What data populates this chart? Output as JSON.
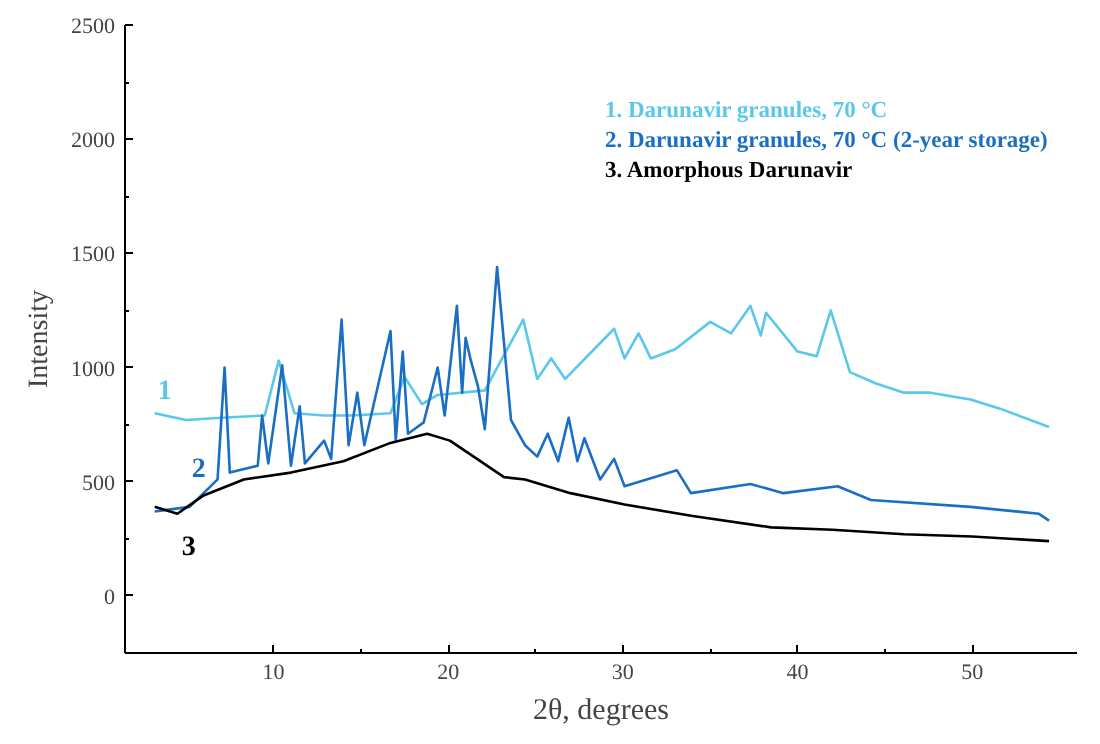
{
  "chart_data": {
    "type": "line",
    "xlabel": "2θ, degrees",
    "ylabel": "Intensity",
    "xlim": [
      1.5,
      56
    ],
    "ylim": [
      -250,
      2500
    ],
    "xticks": [
      10,
      20,
      30,
      40,
      50
    ],
    "yticks": [
      0,
      500,
      1000,
      1500,
      2000,
      2500
    ],
    "grid": false,
    "legend": "top right",
    "marker": "none",
    "line_style": "solid",
    "series": [
      {
        "name": "1. Darunavir granules, 70 °C",
        "color": "#5ac8eb",
        "x": [
          3.2,
          5,
          7,
          9.5,
          10.3,
          11.2,
          12.9,
          14.5,
          16.7,
          17.5,
          18.5,
          19.4,
          22.1,
          24.3,
          25.1,
          25.9,
          26.7,
          29.5,
          30.1,
          30.9,
          31.6,
          33,
          35.0,
          36.2,
          37.3,
          37.9,
          38.2,
          40.0,
          41.1,
          41.9,
          43.0,
          44.5,
          46.1,
          47.6,
          49.9,
          51.6,
          54.4
        ],
        "values": [
          800,
          770,
          780,
          790,
          1030,
          800,
          790,
          790,
          800,
          960,
          840,
          880,
          900,
          1210,
          950,
          1040,
          950,
          1170,
          1040,
          1150,
          1040,
          1080,
          1200,
          1150,
          1270,
          1140,
          1240,
          1070,
          1050,
          1250,
          980,
          930,
          890,
          890,
          860,
          820,
          740
        ]
      },
      {
        "name": "2. Darunavir granules, 70 °C (2-year storage)",
        "color": "#1a6fc4",
        "x": [
          3.2,
          5.2,
          6.8,
          7.2,
          7.5,
          9.1,
          9.35,
          9.7,
          10.5,
          11.0,
          11.5,
          11.8,
          12.9,
          13.3,
          13.9,
          14.3,
          14.8,
          15.2,
          16.7,
          17.0,
          17.4,
          17.7,
          18.6,
          19.4,
          19.8,
          20.5,
          20.8,
          21.0,
          21.3,
          21.7,
          22.1,
          22.8,
          23.6,
          24.4,
          25.1,
          25.7,
          26.3,
          26.9,
          27.4,
          27.8,
          28.7,
          29.5,
          30.1,
          33.1,
          33.9,
          37.3,
          39.2,
          42.3,
          44.2,
          49.9,
          53.8,
          54.4
        ],
        "values": [
          370,
          390,
          510,
          1000,
          540,
          570,
          790,
          580,
          1010,
          570,
          830,
          580,
          680,
          600,
          1210,
          660,
          890,
          660,
          1160,
          680,
          1070,
          710,
          760,
          1000,
          790,
          1270,
          890,
          1130,
          1030,
          920,
          730,
          1440,
          770,
          660,
          610,
          710,
          590,
          780,
          590,
          690,
          510,
          600,
          480,
          550,
          450,
          490,
          450,
          480,
          420,
          390,
          360,
          330
        ]
      },
      {
        "name": "3. Amorphous Darunavir",
        "color": "#000000",
        "x": [
          3.2,
          4.5,
          6.0,
          8.3,
          11.0,
          14.0,
          16.7,
          18.8,
          20.1,
          23.2,
          24.4,
          27,
          30.1,
          34,
          38.5,
          42,
          46.1,
          50,
          54.4
        ],
        "values": [
          390,
          360,
          440,
          510,
          540,
          590,
          670,
          710,
          680,
          520,
          510,
          450,
          400,
          350,
          300,
          290,
          270,
          260,
          240
        ]
      }
    ],
    "annotations": [
      "1",
      "2",
      "3"
    ]
  }
}
